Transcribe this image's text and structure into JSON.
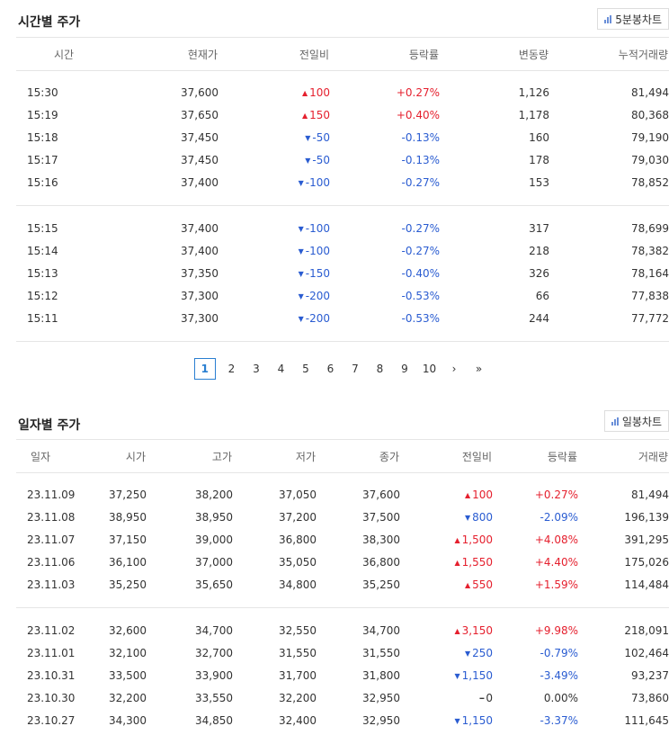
{
  "time_section": {
    "title": "시간별 주가",
    "chart_button": "5분봉차트",
    "headers": [
      "시간",
      "현재가",
      "전일비",
      "등락률",
      "변동량",
      "누적거래량"
    ],
    "group1": [
      {
        "time": "15:30",
        "price": "37,600",
        "dir": "up",
        "diff": "100",
        "rate": "+0.27%",
        "vol": "1,126",
        "cum": "81,494"
      },
      {
        "time": "15:19",
        "price": "37,650",
        "dir": "up",
        "diff": "150",
        "rate": "+0.40%",
        "vol": "1,178",
        "cum": "80,368"
      },
      {
        "time": "15:18",
        "price": "37,450",
        "dir": "down",
        "diff": "-50",
        "rate": "-0.13%",
        "vol": "160",
        "cum": "79,190"
      },
      {
        "time": "15:17",
        "price": "37,450",
        "dir": "down",
        "diff": "-50",
        "rate": "-0.13%",
        "vol": "178",
        "cum": "79,030"
      },
      {
        "time": "15:16",
        "price": "37,400",
        "dir": "down",
        "diff": "-100",
        "rate": "-0.27%",
        "vol": "153",
        "cum": "78,852"
      }
    ],
    "group2": [
      {
        "time": "15:15",
        "price": "37,400",
        "dir": "down",
        "diff": "-100",
        "rate": "-0.27%",
        "vol": "317",
        "cum": "78,699"
      },
      {
        "time": "15:14",
        "price": "37,400",
        "dir": "down",
        "diff": "-100",
        "rate": "-0.27%",
        "vol": "218",
        "cum": "78,382"
      },
      {
        "time": "15:13",
        "price": "37,350",
        "dir": "down",
        "diff": "-150",
        "rate": "-0.40%",
        "vol": "326",
        "cum": "78,164"
      },
      {
        "time": "15:12",
        "price": "37,300",
        "dir": "down",
        "diff": "-200",
        "rate": "-0.53%",
        "vol": "66",
        "cum": "77,838"
      },
      {
        "time": "15:11",
        "price": "37,300",
        "dir": "down",
        "diff": "-200",
        "rate": "-0.53%",
        "vol": "244",
        "cum": "77,772"
      }
    ]
  },
  "pagination": {
    "current": "1",
    "pages": [
      "1",
      "2",
      "3",
      "4",
      "5",
      "6",
      "7",
      "8",
      "9",
      "10"
    ],
    "next": "›",
    "last": "»"
  },
  "daily_section": {
    "title": "일자별 주가",
    "chart_button": "일봉차트",
    "headers": [
      "일자",
      "시가",
      "고가",
      "저가",
      "종가",
      "전일비",
      "등락률",
      "거래량"
    ],
    "group1": [
      {
        "date": "23.11.09",
        "open": "37,250",
        "high": "38,200",
        "low": "37,050",
        "close": "37,600",
        "dir": "up",
        "diff": "100",
        "rate": "+0.27%",
        "vol": "81,494"
      },
      {
        "date": "23.11.08",
        "open": "38,950",
        "high": "38,950",
        "low": "37,200",
        "close": "37,500",
        "dir": "down",
        "diff": "800",
        "rate": "-2.09%",
        "vol": "196,139"
      },
      {
        "date": "23.11.07",
        "open": "37,150",
        "high": "39,000",
        "low": "36,800",
        "close": "38,300",
        "dir": "up",
        "diff": "1,500",
        "rate": "+4.08%",
        "vol": "391,295"
      },
      {
        "date": "23.11.06",
        "open": "36,100",
        "high": "37,000",
        "low": "35,050",
        "close": "36,800",
        "dir": "up",
        "diff": "1,550",
        "rate": "+4.40%",
        "vol": "175,026"
      },
      {
        "date": "23.11.03",
        "open": "35,250",
        "high": "35,650",
        "low": "34,800",
        "close": "35,250",
        "dir": "up",
        "diff": "550",
        "rate": "+1.59%",
        "vol": "114,484"
      }
    ],
    "group2": [
      {
        "date": "23.11.02",
        "open": "32,600",
        "high": "34,700",
        "low": "32,550",
        "close": "34,700",
        "dir": "up",
        "diff": "3,150",
        "rate": "+9.98%",
        "vol": "218,091"
      },
      {
        "date": "23.11.01",
        "open": "32,100",
        "high": "32,700",
        "low": "31,550",
        "close": "31,550",
        "dir": "down",
        "diff": "250",
        "rate": "-0.79%",
        "vol": "102,464"
      },
      {
        "date": "23.10.31",
        "open": "33,500",
        "high": "33,900",
        "low": "31,700",
        "close": "31,800",
        "dir": "down",
        "diff": "1,150",
        "rate": "-3.49%",
        "vol": "93,237"
      },
      {
        "date": "23.10.30",
        "open": "32,200",
        "high": "33,550",
        "low": "32,200",
        "close": "32,950",
        "dir": "flat",
        "diff": "0",
        "rate": "0.00%",
        "vol": "73,860"
      },
      {
        "date": "23.10.27",
        "open": "34,300",
        "high": "34,850",
        "low": "32,400",
        "close": "32,950",
        "dir": "down",
        "diff": "1,150",
        "rate": "-3.37%",
        "vol": "111,645"
      }
    ]
  },
  "colors": {
    "up": "#e5202e",
    "down": "#2a5cd1",
    "border": "#e5e5e5",
    "active_page": "#2a7fd1"
  }
}
